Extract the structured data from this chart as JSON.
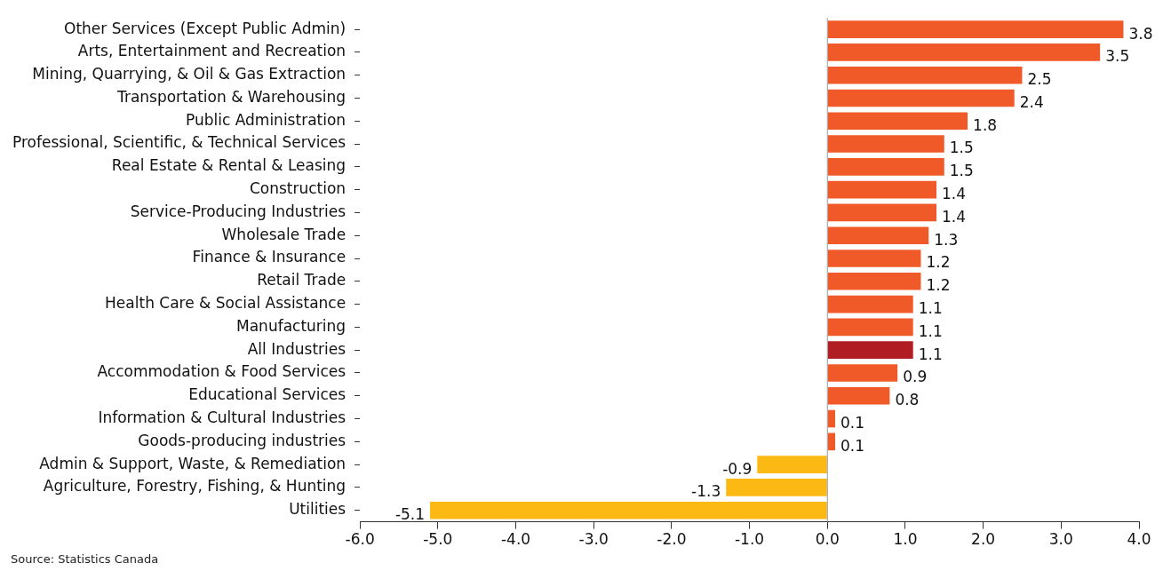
{
  "chart_data": {
    "type": "bar",
    "orientation": "horizontal",
    "categories": [
      "Other Services (Except Public Admin)",
      "Arts, Entertainment and Recreation",
      "Mining, Quarrying, & Oil & Gas Extraction",
      "Transportation & Warehousing",
      "Public Administration",
      "Professional, Scientific, & Technical Services",
      "Real Estate & Rental & Leasing",
      "Construction",
      "Service-Producing Industries",
      "Wholesale Trade",
      "Finance & Insurance",
      "Retail Trade",
      "Health Care & Social Assistance",
      "Manufacturing",
      "All Industries",
      "Accommodation & Food Services",
      "Educational Services",
      "Information & Cultural Industries",
      "Goods-producing industries",
      "Admin & Support, Waste, & Remediation",
      "Agriculture, Forestry, Fishing, & Hunting",
      "Utilities"
    ],
    "values": [
      3.8,
      3.5,
      2.5,
      2.4,
      1.8,
      1.5,
      1.5,
      1.4,
      1.4,
      1.3,
      1.2,
      1.2,
      1.1,
      1.1,
      1.1,
      0.9,
      0.8,
      0.1,
      0.1,
      -0.9,
      -1.3,
      -5.1
    ],
    "colors": [
      "#f05a28",
      "#f05a28",
      "#f05a28",
      "#f05a28",
      "#f05a28",
      "#f05a28",
      "#f05a28",
      "#f05a28",
      "#f05a28",
      "#f05a28",
      "#f05a28",
      "#f05a28",
      "#f05a28",
      "#f05a28",
      "#b01e23",
      "#f05a28",
      "#f05a28",
      "#f05a28",
      "#f05a28",
      "#fdb913",
      "#fdb913",
      "#fdb913"
    ],
    "xlim": [
      -6,
      4
    ],
    "xticks": [
      {
        "value": -6,
        "label": "-6.0"
      },
      {
        "value": -5,
        "label": "-5.0"
      },
      {
        "value": -4,
        "label": "-4.0"
      },
      {
        "value": -3,
        "label": "-3.0"
      },
      {
        "value": -2,
        "label": "-2.0"
      },
      {
        "value": -1,
        "label": "-1.0"
      },
      {
        "value": 0,
        "label": "0.0"
      },
      {
        "value": 1,
        "label": "1.0"
      },
      {
        "value": 2,
        "label": "2.0"
      },
      {
        "value": 3,
        "label": "3.0"
      },
      {
        "value": 4,
        "label": "4.0"
      }
    ],
    "data_labels": true,
    "grid": false,
    "legend": false,
    "ref_lines": [
      {
        "axis": "x",
        "value": 0,
        "color": "#999999"
      }
    ],
    "annotations": [
      "Source: Statistics Canada"
    ]
  }
}
